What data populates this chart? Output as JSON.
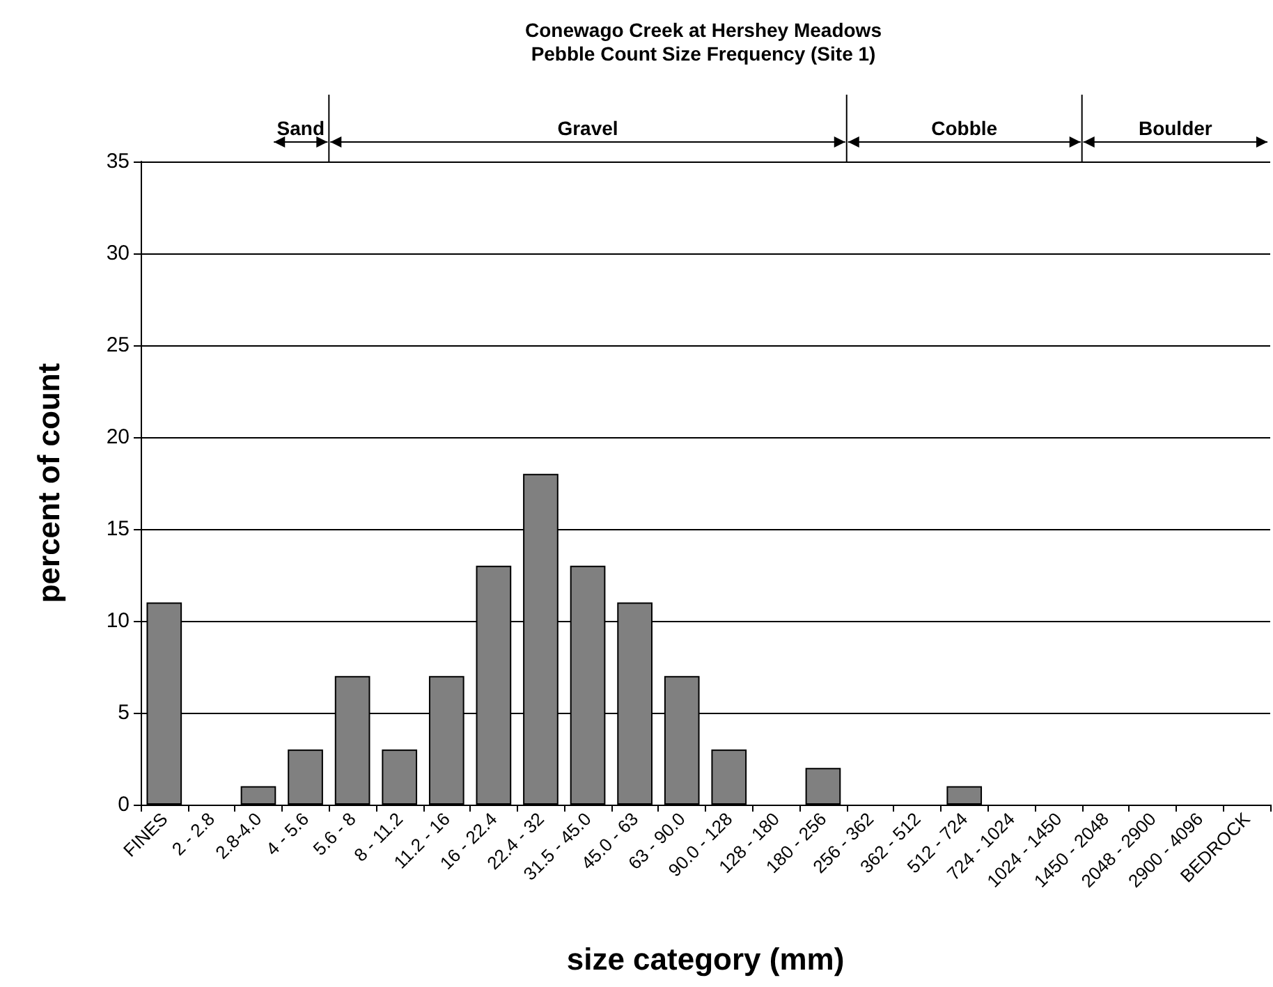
{
  "chart_data": {
    "type": "bar",
    "title": "Conewago Creek at Hershey Meadows\nPebble Count Size Frequency (Site 1)",
    "xlabel": "size category (mm)",
    "ylabel": "percent of count",
    "categories": [
      "FINES",
      "2 - 2.8",
      "2.8-4.0",
      "4 - 5.6",
      "5.6 - 8",
      "8 - 11.2",
      "11.2 - 16",
      "16 - 22.4",
      "22.4 - 32",
      "31.5 - 45.0",
      "45.0 - 63",
      "63 - 90.0",
      "90.0 - 128",
      "128 - 180",
      "180 - 256",
      "256 - 362",
      "362 - 512",
      "512 - 724",
      "724 - 1024",
      "1024 - 1450",
      "1450 - 2048",
      "2048 - 2900",
      "2900 - 4096",
      "BEDROCK"
    ],
    "values": [
      11,
      0,
      1,
      3,
      7,
      3,
      7,
      13,
      18,
      13,
      11,
      7,
      3,
      0,
      2,
      0,
      0,
      1,
      0,
      0,
      0,
      0,
      0,
      0
    ],
    "color": "#808080",
    "ylim": [
      0,
      35
    ],
    "yticks": [
      0,
      5,
      10,
      15,
      20,
      25,
      30,
      35
    ],
    "grid": "y",
    "annotations": [
      "Sand",
      "Gravel",
      "Cobble",
      "Boulder"
    ]
  }
}
